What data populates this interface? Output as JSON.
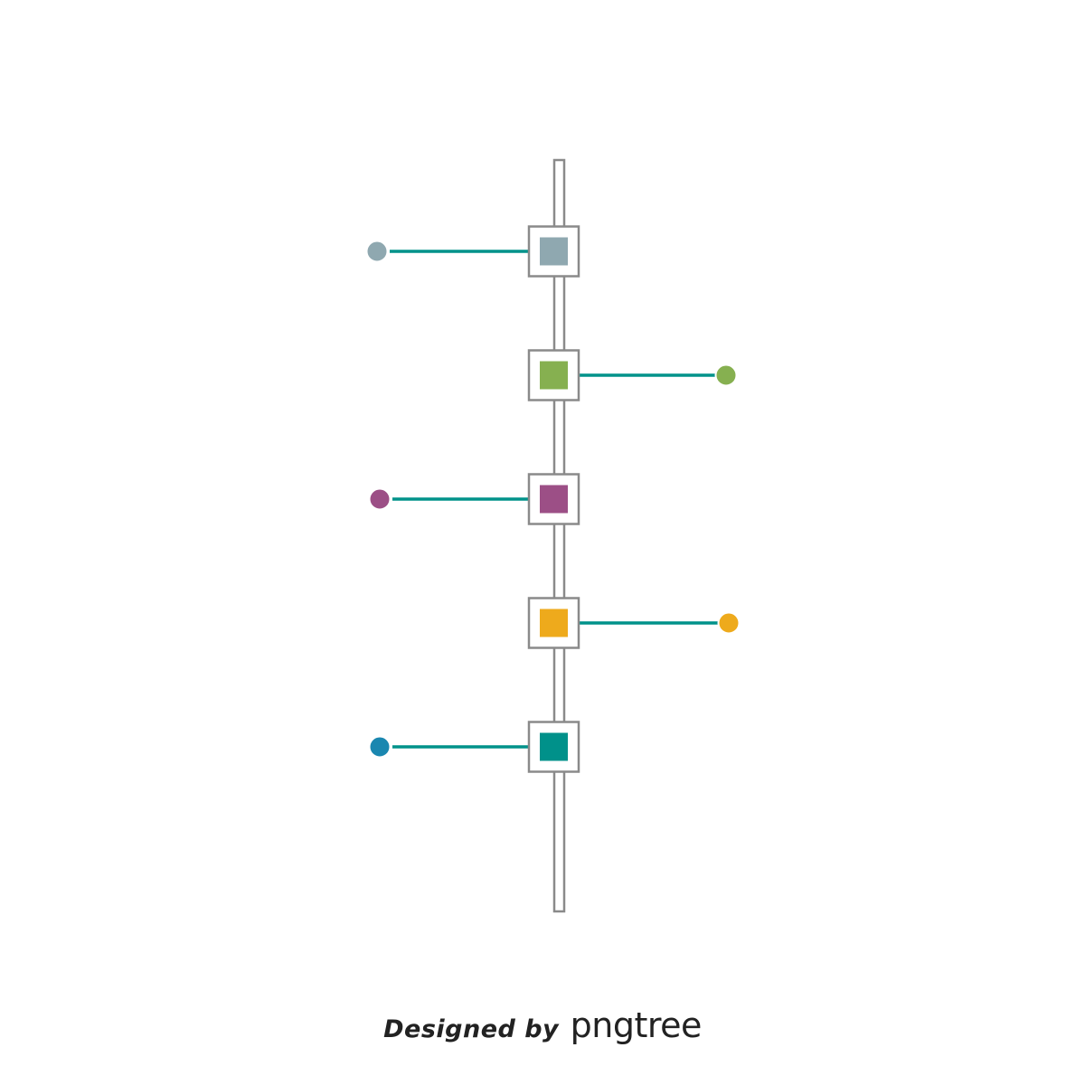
{
  "diagram": {
    "type": "vertical-timeline",
    "connector_color": "#00928a",
    "frame_color": "#8a8a8a",
    "rail_color": "#8a8a8a",
    "nodes": [
      {
        "side": "left",
        "color": "#8fa8b0",
        "dot_color": "#8fa8b0",
        "marker": "square"
      },
      {
        "side": "right",
        "color": "#86b050",
        "dot_color": "#86b050",
        "marker": "square"
      },
      {
        "side": "left",
        "color": "#9c4f86",
        "dot_color": "#9c4f86",
        "marker": "square"
      },
      {
        "side": "right",
        "color": "#eeaa1c",
        "dot_color": "#eeaa1c",
        "marker": "square"
      },
      {
        "side": "left",
        "color": "#00918a",
        "dot_color": "#1a87b0",
        "marker": "square"
      }
    ]
  },
  "watermark": {
    "designed_by": "Designed by",
    "brand": "pngtree"
  }
}
